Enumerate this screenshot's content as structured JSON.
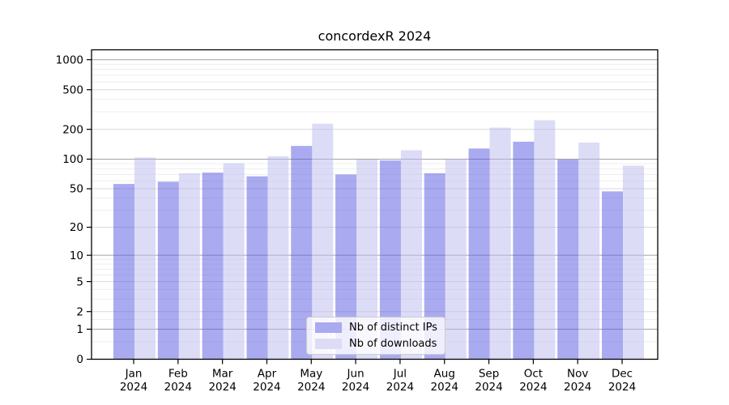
{
  "chart_data": {
    "type": "bar",
    "title": "concordexR 2024",
    "categories": [
      "Jan",
      "Feb",
      "Mar",
      "Apr",
      "May",
      "Jun",
      "Jul",
      "Aug",
      "Sep",
      "Oct",
      "Nov",
      "Dec"
    ],
    "x_year_label": "2024",
    "series": [
      {
        "name": "Nb of distinct IPs",
        "color": "#aaaaf0",
        "values": [
          56,
          59,
          73,
          67,
          136,
          70,
          97,
          72,
          128,
          150,
          99,
          47
        ]
      },
      {
        "name": "Nb of downloads",
        "color": "#dcdcf7",
        "values": [
          104,
          72,
          91,
          107,
          228,
          99,
          123,
          100,
          208,
          247,
          147,
          86
        ]
      }
    ],
    "y_scale": "log1p",
    "y_ticks": [
      0,
      1,
      2,
      5,
      10,
      20,
      50,
      100,
      200,
      500,
      1000
    ],
    "y_major_dark_gridlines": [
      1,
      10,
      100,
      1000
    ],
    "y_major_light_gridlines": [
      2,
      5,
      20,
      50,
      200,
      500
    ],
    "y_minor_gridlines": [
      0.5,
      1.5,
      3,
      4,
      6,
      7,
      8,
      9,
      30,
      40,
      60,
      70,
      80,
      90,
      300,
      400,
      600,
      700,
      800,
      900
    ],
    "ylim": [
      0,
      1200
    ],
    "grid": true,
    "legend_position": "lower center"
  },
  "style": {
    "series_base_colors": [
      "#5555e2",
      "#b9b9ef"
    ],
    "bar_fill_opacity": 0.5,
    "grid_major_dark_color": "#a3a3a3",
    "grid_major_light_color": "#d9d9d9",
    "grid_minor_color": "#ececec",
    "axis_color": "#000000",
    "tick_label_size": 13.5,
    "legend_bg": "rgba(255,255,255,0.8)",
    "legend_border": "#cccccc"
  }
}
